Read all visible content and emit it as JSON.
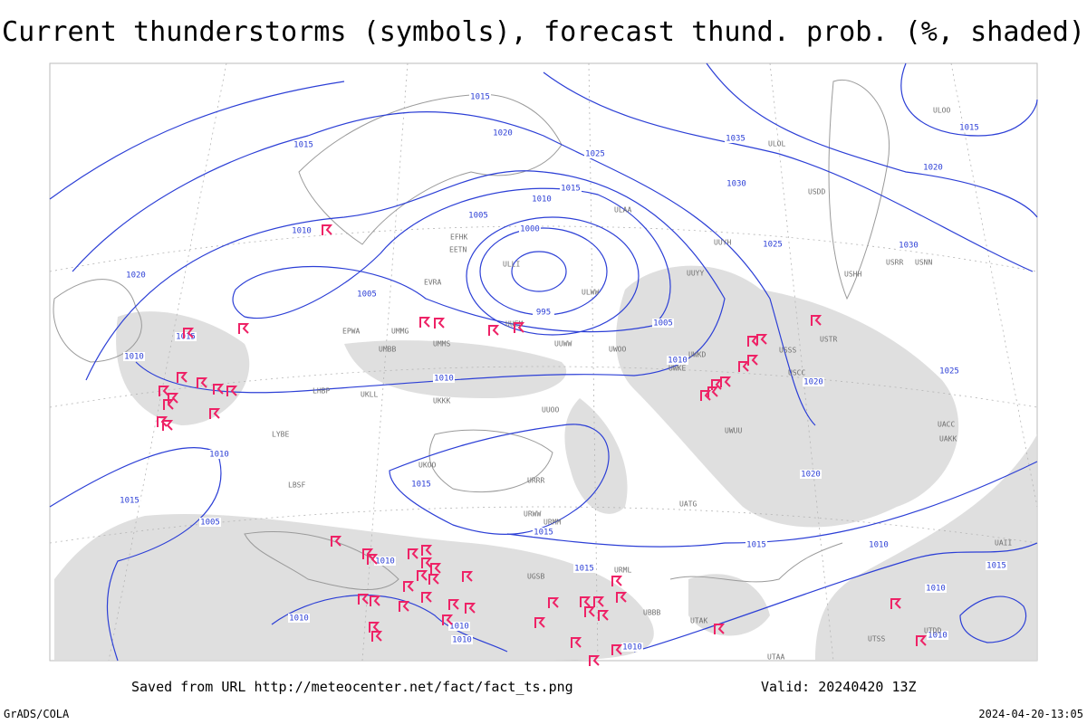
{
  "title": "Current thunderstorms (symbols), forecast thund. prob. (%, shaded)",
  "footer": {
    "source": "Saved from URL http://meteocenter.net/fact/fact_ts.png",
    "valid": "Valid: 20240420 13Z",
    "software": "GrADS/COLA",
    "timestamp": "2024-04-20-13:05"
  },
  "isobars": [
    1015,
    1020,
    1025,
    1035,
    1015,
    1015,
    1020,
    1030,
    1010,
    1015,
    1005,
    1000,
    1025,
    1010,
    1020,
    1005,
    995,
    1005,
    1015,
    1010,
    1010,
    1025,
    1010,
    1020,
    1010,
    1020,
    1015,
    1015,
    1005,
    1015,
    1015,
    1010,
    1010,
    1015,
    1015,
    1010,
    1010,
    1010,
    1010,
    1010,
    1010,
    1030
  ],
  "stations": [
    "ULOO",
    "ULOL",
    "ULAA",
    "USDD",
    "USHH",
    "USRR",
    "USNN",
    "UUYY",
    "UUYH",
    "ULWW",
    "UUEM",
    "UUWW",
    "ULLI",
    "EFHK",
    "EETN",
    "EVRA",
    "EPWA",
    "UMMS",
    "UMMG",
    "UMBB",
    "UKKK",
    "UKLL",
    "LHBP",
    "LYBE",
    "LBSF",
    "UKOO",
    "UUOO",
    "URRR",
    "URWW",
    "UATG",
    "UACC",
    "UAKK",
    "USSS",
    "USCC",
    "USTR",
    "UWUU",
    "UWKE",
    "UWKD",
    "UWOO",
    "URMM",
    "URML",
    "UGSB",
    "UBBB",
    "UTAK",
    "UTAA",
    "UTSS",
    "UTDD",
    "UAII"
  ]
}
